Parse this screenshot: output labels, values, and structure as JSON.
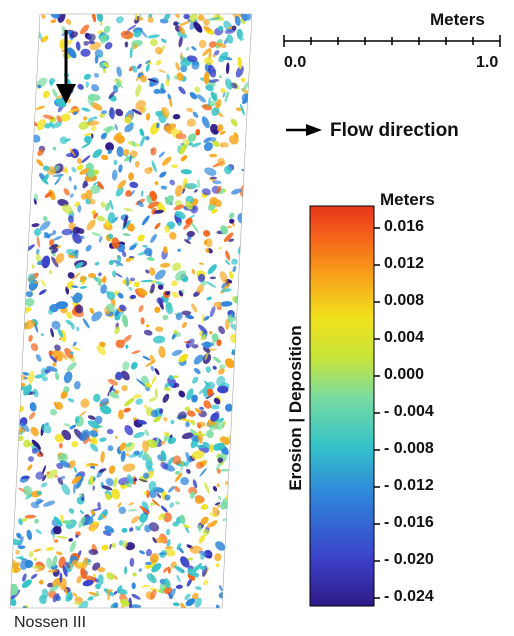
{
  "scale_bar": {
    "title": "Meters",
    "start_label": "0.0",
    "end_label": "1.0"
  },
  "flow": {
    "label": "Flow direction"
  },
  "legend": {
    "title": "Meters",
    "axis_label": "Erosion | Deposition",
    "ticks": [
      "0.016",
      "0.012",
      "0.008",
      "0.004",
      "0.000",
      "- 0.004",
      "- 0.008",
      "- 0.012",
      "- 0.016",
      "- 0.020",
      "- 0.024"
    ],
    "colormap": [
      "#2e1a86",
      "#3b42c9",
      "#2f86da",
      "#35c3c9",
      "#78dca0",
      "#c7e43a",
      "#f2e21c",
      "#f8a51b",
      "#f5641a",
      "#e8361a"
    ]
  },
  "site_label": "Nossen III"
}
